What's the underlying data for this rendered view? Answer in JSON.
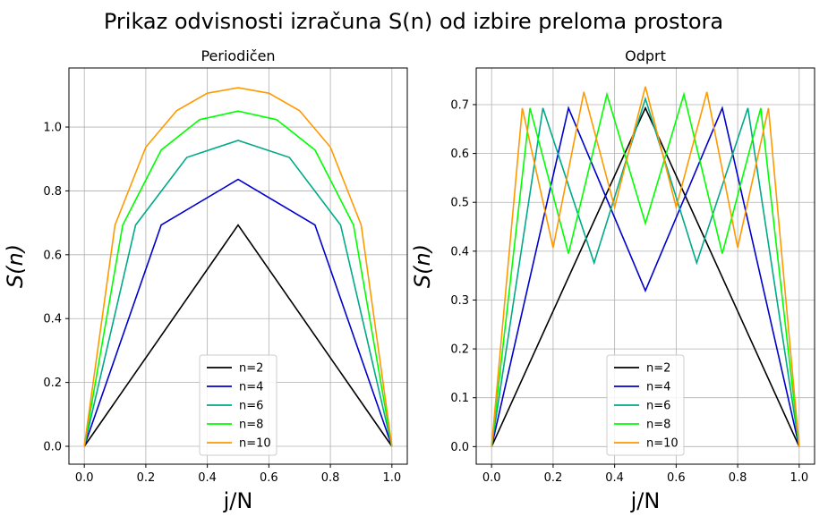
{
  "figure": {
    "title": "Prikaz odvisnosti izračuna S(n) od izbire preloma prostora"
  },
  "chart_data": [
    {
      "type": "line",
      "title": "Periodičen",
      "xlabel": "j/N",
      "ylabel": "S(n)",
      "xlim": [
        -0.05,
        1.05
      ],
      "ylim": [
        -0.056,
        1.185
      ],
      "xticks": [
        "0.0",
        "0.2",
        "0.4",
        "0.6",
        "0.8",
        "1.0"
      ],
      "yticks": [
        "0.0",
        "0.2",
        "0.4",
        "0.6",
        "0.8",
        "1.0"
      ],
      "grid": true,
      "legend": "lower-center",
      "series": [
        {
          "name": "n=2",
          "color": "#000000",
          "x": [
            0,
            0.5,
            1
          ],
          "y": [
            0,
            0.693,
            0
          ]
        },
        {
          "name": "n=4",
          "color": "#0000cc",
          "x": [
            0,
            0.25,
            0.5,
            0.75,
            1
          ],
          "y": [
            0,
            0.693,
            0.836,
            0.693,
            0
          ]
        },
        {
          "name": "n=6",
          "color": "#00aa88",
          "x": [
            0,
            0.1667,
            0.3333,
            0.5,
            0.6667,
            0.8333,
            1
          ],
          "y": [
            0,
            0.693,
            0.905,
            0.958,
            0.905,
            0.693,
            0
          ]
        },
        {
          "name": "n=8",
          "color": "#00ff00",
          "x": [
            0,
            0.125,
            0.25,
            0.375,
            0.5,
            0.625,
            0.75,
            0.875,
            1
          ],
          "y": [
            0,
            0.693,
            0.928,
            1.023,
            1.05,
            1.023,
            0.928,
            0.693,
            0
          ]
        },
        {
          "name": "n=10",
          "color": "#ff9900",
          "x": [
            0,
            0.1,
            0.2,
            0.3,
            0.4,
            0.5,
            0.6,
            0.7,
            0.8,
            0.9,
            1
          ],
          "y": [
            0,
            0.693,
            0.937,
            1.051,
            1.106,
            1.123,
            1.106,
            1.051,
            0.937,
            0.693,
            0
          ]
        }
      ]
    },
    {
      "type": "line",
      "title": "Odprt",
      "xlabel": "j/N",
      "ylabel": "S(n)",
      "xlim": [
        -0.05,
        1.05
      ],
      "ylim": [
        -0.036,
        0.775
      ],
      "xticks": [
        "0.0",
        "0.2",
        "0.4",
        "0.6",
        "0.8",
        "1.0"
      ],
      "yticks": [
        "0.0",
        "0.1",
        "0.2",
        "0.3",
        "0.4",
        "0.5",
        "0.6",
        "0.7"
      ],
      "grid": true,
      "legend": "lower-center",
      "series": [
        {
          "name": "n=2",
          "color": "#000000",
          "x": [
            0,
            0.5,
            1
          ],
          "y": [
            0,
            0.693,
            0
          ]
        },
        {
          "name": "n=4",
          "color": "#0000cc",
          "x": [
            0,
            0.25,
            0.5,
            0.75,
            1
          ],
          "y": [
            0,
            0.693,
            0.319,
            0.693,
            0
          ]
        },
        {
          "name": "n=6",
          "color": "#00aa88",
          "x": [
            0,
            0.1667,
            0.3333,
            0.5,
            0.6667,
            0.8333,
            1
          ],
          "y": [
            0,
            0.693,
            0.376,
            0.712,
            0.376,
            0.693,
            0
          ]
        },
        {
          "name": "n=8",
          "color": "#00ff00",
          "x": [
            0,
            0.125,
            0.25,
            0.375,
            0.5,
            0.625,
            0.75,
            0.875,
            1
          ],
          "y": [
            0,
            0.693,
            0.395,
            0.721,
            0.457,
            0.721,
            0.395,
            0.693,
            0
          ]
        },
        {
          "name": "n=10",
          "color": "#ff9900",
          "x": [
            0,
            0.1,
            0.2,
            0.3,
            0.4,
            0.5,
            0.6,
            0.7,
            0.8,
            0.9,
            1
          ],
          "y": [
            0,
            0.693,
            0.407,
            0.726,
            0.49,
            0.737,
            0.49,
            0.726,
            0.407,
            0.693,
            0
          ]
        }
      ]
    }
  ]
}
